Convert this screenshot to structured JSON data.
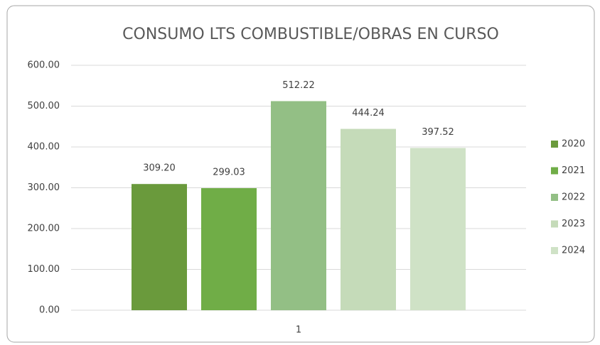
{
  "chart_data": {
    "type": "bar",
    "title": "CONSUMO LTS COMBUSTIBLE/OBRAS EN CURSO",
    "categories": [
      "1"
    ],
    "series": [
      {
        "name": "2020",
        "color": "#6a9a3c",
        "values": [
          309.2
        ],
        "value_labels": [
          "309.20"
        ]
      },
      {
        "name": "2021",
        "color": "#70ad47",
        "values": [
          299.03
        ],
        "value_labels": [
          "299.03"
        ]
      },
      {
        "name": "2022",
        "color": "#93bf85",
        "values": [
          512.22
        ],
        "value_labels": [
          "512.22"
        ]
      },
      {
        "name": "2023",
        "color": "#c5dbb9",
        "values": [
          444.24
        ],
        "value_labels": [
          "444.24"
        ]
      },
      {
        "name": "2024",
        "color": "#cfe2c6",
        "values": [
          397.52
        ],
        "value_labels": [
          "397.52"
        ]
      }
    ],
    "ylim": [
      0,
      600
    ],
    "yticks": [
      {
        "value": 0,
        "label": "0.00"
      },
      {
        "value": 100,
        "label": "100.00"
      },
      {
        "value": 200,
        "label": "200.00"
      },
      {
        "value": 300,
        "label": "300.00"
      },
      {
        "value": 400,
        "label": "400.00"
      },
      {
        "value": 500,
        "label": "500.00"
      },
      {
        "value": 600,
        "label": "600.00"
      }
    ],
    "grid": true,
    "legend": "right"
  }
}
